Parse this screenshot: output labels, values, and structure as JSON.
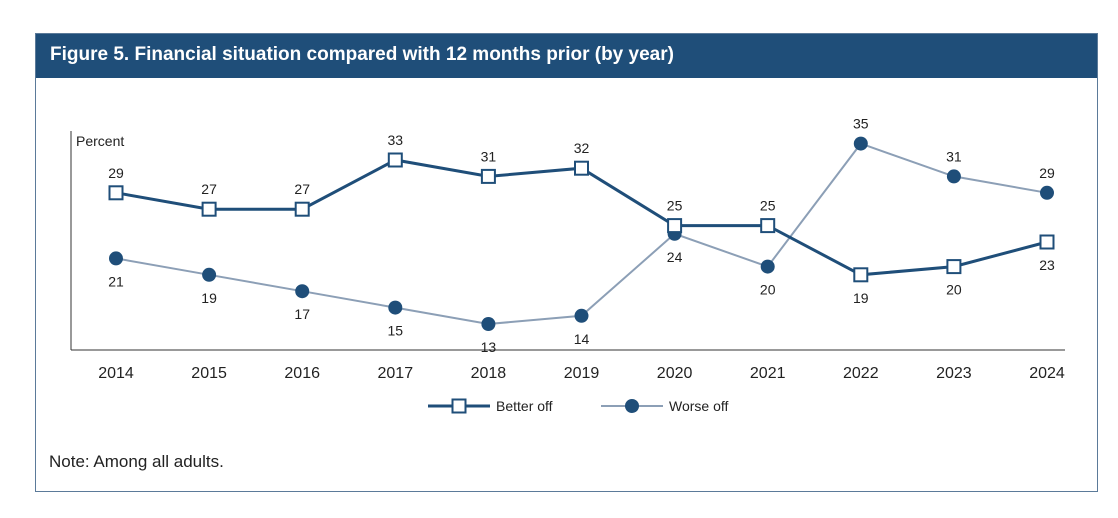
{
  "header": {
    "title": "Figure 5. Financial situation compared with 12 months prior (by year)"
  },
  "note": "Note: Among all adults.",
  "colors": {
    "title_bg": "#1f4e79",
    "better_off": "#1f4e79",
    "worse_off": "#8c9fb6",
    "worse_off_marker": "#1f4e79"
  },
  "chart_data": {
    "type": "line",
    "ylabel": "Percent",
    "x": [
      "2014",
      "2015",
      "2016",
      "2017",
      "2018",
      "2019",
      "2020",
      "2021",
      "2022",
      "2023",
      "2024"
    ],
    "ylim": [
      10,
      38
    ],
    "grid": false,
    "legend_position": "bottom",
    "series": [
      {
        "name": "Better off",
        "marker": "open-square",
        "values": [
          29,
          27,
          27,
          33,
          31,
          32,
          25,
          25,
          19,
          20,
          23
        ]
      },
      {
        "name": "Worse off",
        "marker": "filled-circle",
        "values": [
          21,
          19,
          17,
          15,
          13,
          14,
          24,
          20,
          35,
          31,
          29
        ]
      }
    ]
  }
}
